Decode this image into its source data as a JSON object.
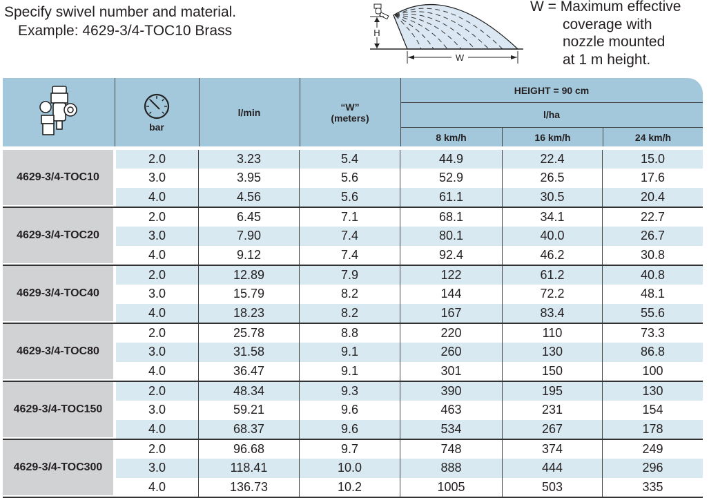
{
  "intro": {
    "line1": "Specify swivel number and material.",
    "line2": "Example: 4629-3/4-TOC10 Brass"
  },
  "diagram": {
    "h_label": "H",
    "w_label": "W"
  },
  "w_definition": {
    "line1": "W = Maximum effective",
    "line2": "coverage with",
    "line3": "nozzle mounted",
    "line4": "at 1 m height."
  },
  "colors": {
    "header": "#a4c8db",
    "row_stripe": "#d9e9f1",
    "model_cell": "#d1d2d4"
  },
  "table": {
    "headers": {
      "bar": "bar",
      "lmin": "l/min",
      "w_line1": "“W”",
      "w_line2": "(meters)",
      "height": "HEIGHT = 90 cm",
      "lha": "l/ha",
      "speeds": [
        "8 km/h",
        "16 km/h",
        "24 km/h"
      ]
    },
    "groups": [
      {
        "model": "4629-3/4-TOC10",
        "rows": [
          [
            "2.0",
            "3.23",
            "5.4",
            "44.9",
            "22.4",
            "15.0"
          ],
          [
            "3.0",
            "3.95",
            "5.6",
            "52.9",
            "26.5",
            "17.6"
          ],
          [
            "4.0",
            "4.56",
            "5.6",
            "61.1",
            "30.5",
            "20.4"
          ]
        ]
      },
      {
        "model": "4629-3/4-TOC20",
        "rows": [
          [
            "2.0",
            "6.45",
            "7.1",
            "68.1",
            "34.1",
            "22.7"
          ],
          [
            "3.0",
            "7.90",
            "7.4",
            "80.1",
            "40.0",
            "26.7"
          ],
          [
            "4.0",
            "9.12",
            "7.4",
            "92.4",
            "46.2",
            "30.8"
          ]
        ]
      },
      {
        "model": "4629-3/4-TOC40",
        "rows": [
          [
            "2.0",
            "12.89",
            "7.9",
            "122",
            "61.2",
            "40.8"
          ],
          [
            "3.0",
            "15.79",
            "8.2",
            "144",
            "72.2",
            "48.1"
          ],
          [
            "4.0",
            "18.23",
            "8.2",
            "167",
            "83.4",
            "55.6"
          ]
        ]
      },
      {
        "model": "4629-3/4-TOC80",
        "rows": [
          [
            "2.0",
            "25.78",
            "8.8",
            "220",
            "110",
            "73.3"
          ],
          [
            "3.0",
            "31.58",
            "9.1",
            "260",
            "130",
            "86.8"
          ],
          [
            "4.0",
            "36.47",
            "9.1",
            "301",
            "150",
            "100"
          ]
        ]
      },
      {
        "model": "4629-3/4-TOC150",
        "rows": [
          [
            "2.0",
            "48.34",
            "9.3",
            "390",
            "195",
            "130"
          ],
          [
            "3.0",
            "59.21",
            "9.6",
            "463",
            "231",
            "154"
          ],
          [
            "4.0",
            "68.37",
            "9.6",
            "534",
            "267",
            "178"
          ]
        ]
      },
      {
        "model": "4629-3/4-TOC300",
        "rows": [
          [
            "2.0",
            "96.68",
            "9.7",
            "748",
            "374",
            "249"
          ],
          [
            "3.0",
            "118.41",
            "10.0",
            "888",
            "444",
            "296"
          ],
          [
            "4.0",
            "136.73",
            "10.2",
            "1005",
            "503",
            "335"
          ]
        ]
      }
    ]
  }
}
